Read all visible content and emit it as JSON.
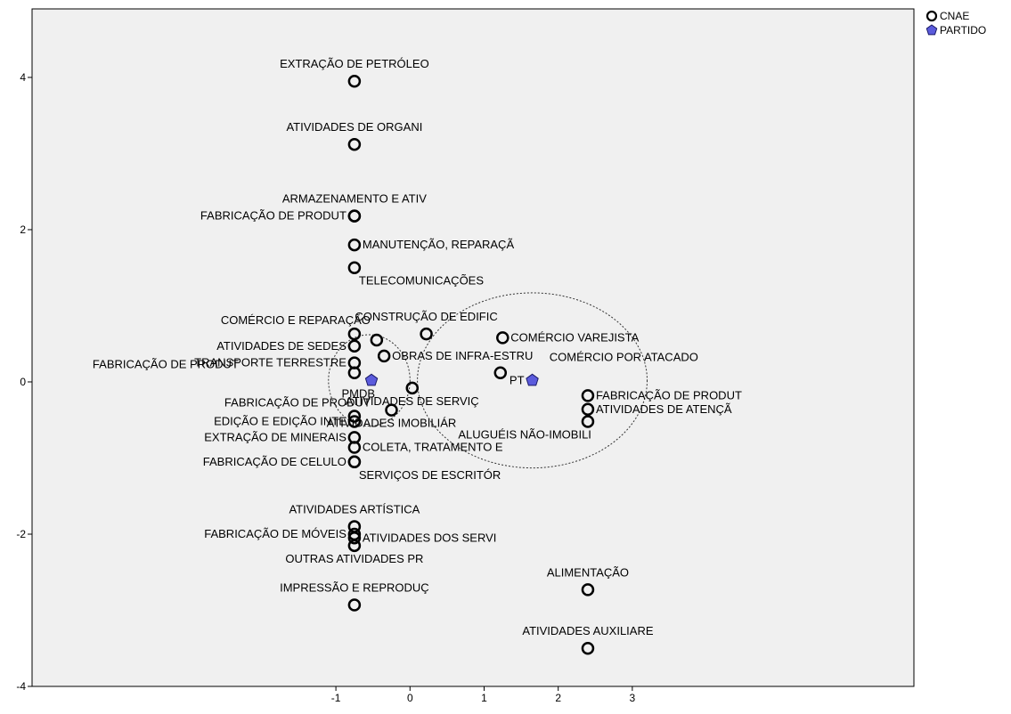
{
  "chart_data": {
    "type": "scatter",
    "xlim": [
      -5.1,
      6.8
    ],
    "ylim": [
      -4,
      4.9
    ],
    "x_ticks": [
      -1,
      0,
      1,
      2,
      3
    ],
    "y_ticks": [
      4,
      2,
      0,
      -2,
      -4
    ],
    "tick_labels": {
      "x": [
        "-1",
        "0",
        "1",
        "2",
        "3"
      ],
      "y": [
        "4",
        "2",
        "0",
        "-2",
        "-4"
      ]
    },
    "grid": false,
    "legend_position": "top-right",
    "colors": {
      "background": "#f0f0f0",
      "partido": "#5b5bdc",
      "marker_stroke": "#000000"
    },
    "series": [
      {
        "name": "CNAE",
        "marker": "circle-open",
        "points": [
          {
            "x": -0.75,
            "y": 3.95,
            "label": "EXTRAÇÃO DE PETRÓLEO",
            "la": "top"
          },
          {
            "x": -0.75,
            "y": 3.12,
            "label": "ATIVIDADES DE ORGANI",
            "la": "top"
          },
          {
            "x": -0.75,
            "y": 2.18,
            "label": "ARMAZENAMENTO E ATIV",
            "la": "top"
          },
          {
            "x": -0.75,
            "y": 2.18,
            "label": "FABRICAÇÃO DE PRODUT",
            "la": "left"
          },
          {
            "x": -0.75,
            "y": 1.8,
            "label": "MANUTENÇÃO, REPARAÇÃ",
            "la": "right"
          },
          {
            "x": -0.75,
            "y": 1.5,
            "label": "TELECOMUNICAÇÕES",
            "la": "bottomright"
          },
          {
            "x": -0.75,
            "y": 0.63,
            "label": "COMÉRCIO E REPARAÇÃO",
            "la": "topleft"
          },
          {
            "x": -0.75,
            "y": 0.47,
            "label": "ATIVIDADES DE SEDES",
            "la": "left"
          },
          {
            "x": -0.45,
            "y": 0.55,
            "label": "",
            "la": "none"
          },
          {
            "x": 0.22,
            "y": 0.63,
            "label": "CONSTRUÇÃO DE EDIFIC",
            "la": "top"
          },
          {
            "x": 1.25,
            "y": 0.58,
            "label": "COMÉRCIO VAREJISTA",
            "la": "right"
          },
          {
            "x": -0.75,
            "y": 0.25,
            "label": "TRANSPORTE TERRESTRE",
            "la": "left"
          },
          {
            "x": -0.35,
            "y": 0.34,
            "label": "OBRAS DE INFRA-ESTRU",
            "la": "right"
          },
          {
            "x": 1.22,
            "y": 0.12,
            "label": "COMÉRCIO POR ATACADO",
            "la": "topright"
          },
          {
            "x": -0.75,
            "y": 0.12,
            "label": "FABRICAÇÃO DE PRODUT",
            "la": "farleft"
          },
          {
            "x": 0.03,
            "y": -0.08,
            "label": "ATIVIDADES DE SERVIÇ",
            "la": "bottom"
          },
          {
            "x": -0.75,
            "y": -0.45,
            "label": "FABRICAÇÃO DE PRODUT",
            "la": "topleft"
          },
          {
            "x": -0.25,
            "y": -0.37,
            "label": "ATIVIDADES IMOBILIÁR",
            "la": "bottom"
          },
          {
            "x": 2.4,
            "y": -0.18,
            "label": "FABRICAÇÃO DE PRODUT",
            "la": "right"
          },
          {
            "x": 2.4,
            "y": -0.36,
            "label": "ATIVIDADES DE ATENÇÃ",
            "la": "right"
          },
          {
            "x": 2.4,
            "y": -0.52,
            "label": "ALUGUÉIS NÃO-IMOBILI",
            "la": "bottomleft"
          },
          {
            "x": -0.75,
            "y": -0.52,
            "label": "EDIÇÃO E EDIÇÃO INTE",
            "la": "left"
          },
          {
            "x": -0.75,
            "y": -0.73,
            "label": "EXTRAÇÃO DE MINERAIS",
            "la": "left"
          },
          {
            "x": -0.75,
            "y": -0.86,
            "label": "COLETA, TRATAMENTO E",
            "la": "right"
          },
          {
            "x": -0.75,
            "y": -1.05,
            "label": "FABRICAÇÃO DE CELULO",
            "la": "left"
          },
          {
            "x": -0.75,
            "y": -1.05,
            "label": "SERVIÇOS DE ESCRITÓR",
            "la": "bottomright"
          },
          {
            "x": -0.75,
            "y": -1.9,
            "label": "ATIVIDADES ARTÍSTICA",
            "la": "top"
          },
          {
            "x": -0.75,
            "y": -2.0,
            "label": "FABRICAÇÃO DE MÓVEIS",
            "la": "left"
          },
          {
            "x": -0.75,
            "y": -2.05,
            "label": "ATIVIDADES DOS SERVI",
            "la": "right"
          },
          {
            "x": -0.75,
            "y": -2.15,
            "label": "OUTRAS ATIVIDADES PR",
            "la": "bottom"
          },
          {
            "x": 2.4,
            "y": -2.73,
            "label": "ALIMENTAÇÃO",
            "la": "top"
          },
          {
            "x": -0.75,
            "y": -2.93,
            "label": "IMPRESSÃO E REPRODUÇ",
            "la": "top"
          },
          {
            "x": 2.4,
            "y": -3.5,
            "label": "ATIVIDADES AUXILIARE",
            "la": "top"
          }
        ]
      },
      {
        "name": "PARTIDO",
        "marker": "pentagon-filled",
        "points": [
          {
            "x": -0.52,
            "y": 0.02,
            "label": "PMDB",
            "la": "bottomleft"
          },
          {
            "x": 1.65,
            "y": 0.02,
            "label": "PT",
            "la": "left"
          }
        ]
      }
    ],
    "groupings": [
      {
        "cx": -0.55,
        "cy": 0.02,
        "rx": 0.55,
        "ry": 0.6
      },
      {
        "cx": 1.65,
        "cy": 0.02,
        "rx": 1.55,
        "ry": 1.15
      }
    ],
    "legend": [
      {
        "label": "CNAE",
        "marker": "circle-open"
      },
      {
        "label": "PARTIDO",
        "marker": "pentagon-filled"
      }
    ]
  }
}
